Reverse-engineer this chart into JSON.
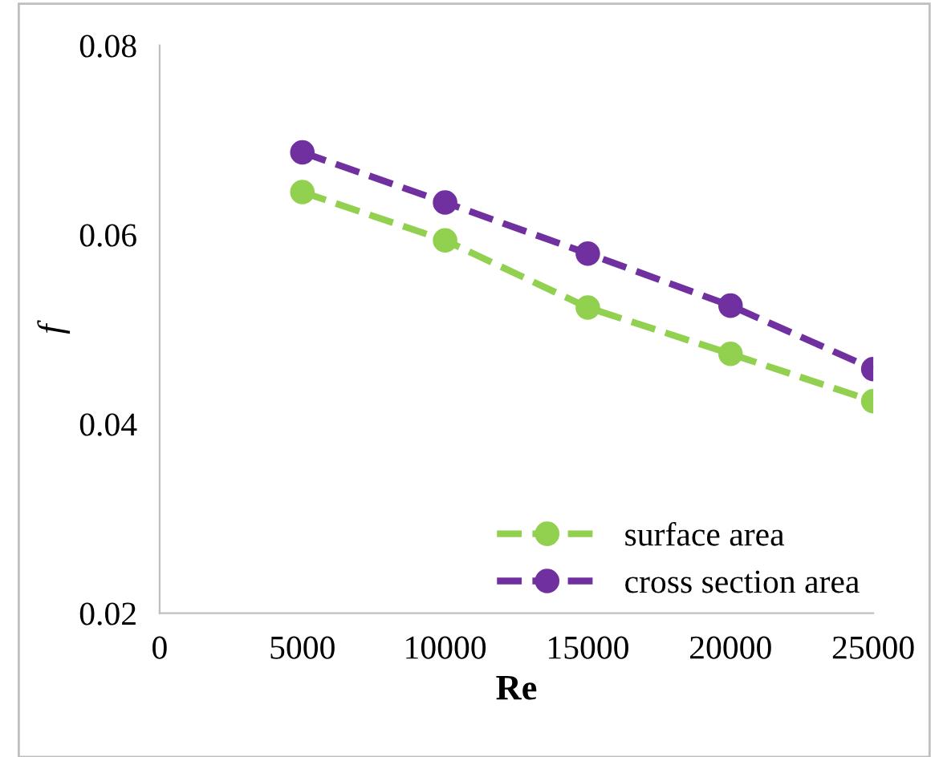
{
  "chart_data": {
    "type": "line",
    "xlabel": "Re",
    "ylabel": "f",
    "x": [
      5000,
      10000,
      15000,
      20000,
      25000
    ],
    "series": [
      {
        "name": "surface area",
        "color": "#92d050",
        "values": [
          0.0645,
          0.0594,
          0.0523,
          0.0474,
          0.0424
        ]
      },
      {
        "name": "cross section area",
        "color": "#7030a0",
        "values": [
          0.0687,
          0.0634,
          0.058,
          0.0525,
          0.0458
        ]
      }
    ],
    "xlim": [
      0,
      25000
    ],
    "xticks": [
      0,
      5000,
      10000,
      15000,
      20000,
      25000
    ],
    "ylim": [
      0.02,
      0.08
    ],
    "yticks": [
      0.02,
      {
        "value": 0.04,
        "label": "0.04"
      },
      {
        "value": 0.06,
        "label": "0.06"
      },
      {
        "value": 0.08,
        "label": "0.08"
      }
    ],
    "grid": false,
    "legend": "bottom right",
    "marker": "circle",
    "line_style": "dashed"
  }
}
